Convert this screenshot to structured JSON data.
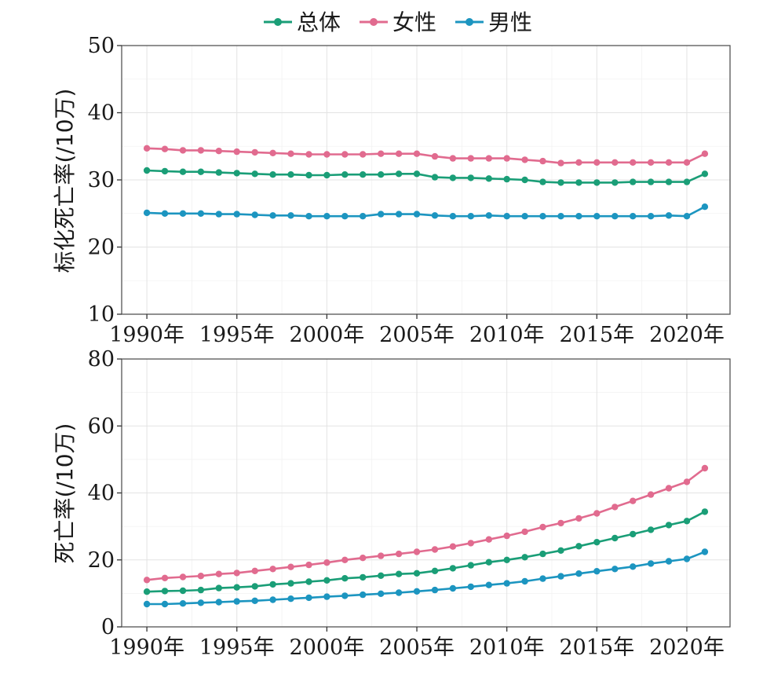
{
  "legend": {
    "items": [
      {
        "label": "总体",
        "color": "#1a9e77"
      },
      {
        "label": "女性",
        "color": "#e16b8f"
      },
      {
        "label": "男性",
        "color": "#1c95c0"
      }
    ]
  },
  "chart_data": [
    {
      "type": "line",
      "ylabel": "标化死亡率(/10万)",
      "ylim": [
        10,
        50
      ],
      "yticks": [
        10,
        20,
        30,
        40,
        50
      ],
      "xlim": [
        1988.6,
        2022.4
      ],
      "xticks": [
        {
          "value": 1990,
          "label": "1990年"
        },
        {
          "value": 1995,
          "label": "1995年"
        },
        {
          "value": 2000,
          "label": "2000年"
        },
        {
          "value": 2005,
          "label": "2005年"
        },
        {
          "value": 2010,
          "label": "2010年"
        },
        {
          "value": 2015,
          "label": "2015年"
        },
        {
          "value": 2020,
          "label": "2020年"
        }
      ],
      "x": [
        1990,
        1991,
        1992,
        1993,
        1994,
        1995,
        1996,
        1997,
        1998,
        1999,
        2000,
        2001,
        2002,
        2003,
        2004,
        2005,
        2006,
        2007,
        2008,
        2009,
        2010,
        2011,
        2012,
        2013,
        2014,
        2015,
        2016,
        2017,
        2018,
        2019,
        2020,
        2021
      ],
      "grid": true,
      "legend_position": "top",
      "series": [
        {
          "name": "总体",
          "color": "#1a9e77",
          "values": [
            31.4,
            31.3,
            31.2,
            31.2,
            31.1,
            31.0,
            30.9,
            30.8,
            30.8,
            30.7,
            30.7,
            30.8,
            30.8,
            30.8,
            30.9,
            30.9,
            30.4,
            30.3,
            30.3,
            30.2,
            30.1,
            30.0,
            29.7,
            29.6,
            29.6,
            29.6,
            29.6,
            29.7,
            29.7,
            29.7,
            29.7,
            30.9
          ]
        },
        {
          "name": "女性",
          "color": "#e16b8f",
          "values": [
            34.7,
            34.6,
            34.4,
            34.4,
            34.3,
            34.2,
            34.1,
            34.0,
            33.9,
            33.8,
            33.8,
            33.8,
            33.8,
            33.9,
            33.9,
            33.9,
            33.5,
            33.2,
            33.2,
            33.2,
            33.2,
            33.0,
            32.8,
            32.5,
            32.6,
            32.6,
            32.6,
            32.6,
            32.6,
            32.6,
            32.6,
            33.9
          ]
        },
        {
          "name": "男性",
          "color": "#1c95c0",
          "values": [
            25.1,
            25.0,
            25.0,
            25.0,
            24.9,
            24.9,
            24.8,
            24.7,
            24.7,
            24.6,
            24.6,
            24.6,
            24.6,
            24.9,
            24.9,
            24.9,
            24.7,
            24.6,
            24.6,
            24.7,
            24.6,
            24.6,
            24.6,
            24.6,
            24.6,
            24.6,
            24.6,
            24.6,
            24.6,
            24.7,
            24.6,
            26.0
          ]
        }
      ]
    },
    {
      "type": "line",
      "ylabel": "死亡率(/10万)",
      "ylim": [
        0,
        80
      ],
      "yticks": [
        0,
        20,
        40,
        60,
        80
      ],
      "xlim": [
        1988.6,
        2022.4
      ],
      "xticks": [
        {
          "value": 1990,
          "label": "1990年"
        },
        {
          "value": 1995,
          "label": "1995年"
        },
        {
          "value": 2000,
          "label": "2000年"
        },
        {
          "value": 2005,
          "label": "2005年"
        },
        {
          "value": 2010,
          "label": "2010年"
        },
        {
          "value": 2015,
          "label": "2015年"
        },
        {
          "value": 2020,
          "label": "2020年"
        }
      ],
      "x": [
        1990,
        1991,
        1992,
        1993,
        1994,
        1995,
        1996,
        1997,
        1998,
        1999,
        2000,
        2001,
        2002,
        2003,
        2004,
        2005,
        2006,
        2007,
        2008,
        2009,
        2010,
        2011,
        2012,
        2013,
        2014,
        2015,
        2016,
        2017,
        2018,
        2019,
        2020,
        2021
      ],
      "grid": true,
      "series": [
        {
          "name": "总体",
          "color": "#1a9e77",
          "values": [
            10.5,
            10.7,
            10.8,
            11.0,
            11.6,
            11.8,
            12.1,
            12.7,
            13.0,
            13.5,
            13.9,
            14.5,
            14.8,
            15.3,
            15.8,
            16.0,
            16.7,
            17.5,
            18.4,
            19.3,
            20.0,
            20.8,
            21.8,
            22.8,
            24.1,
            25.3,
            26.5,
            27.7,
            29.0,
            30.4,
            31.6,
            34.4
          ]
        },
        {
          "name": "女性",
          "color": "#e16b8f",
          "values": [
            14.0,
            14.6,
            14.9,
            15.2,
            15.8,
            16.1,
            16.7,
            17.3,
            17.9,
            18.5,
            19.2,
            20.0,
            20.6,
            21.2,
            21.8,
            22.4,
            23.1,
            24.0,
            25.0,
            26.1,
            27.2,
            28.4,
            29.8,
            31.0,
            32.4,
            33.9,
            35.8,
            37.6,
            39.5,
            41.4,
            43.3,
            47.4
          ]
        },
        {
          "name": "男性",
          "color": "#1c95c0",
          "values": [
            6.8,
            6.8,
            7.0,
            7.2,
            7.4,
            7.6,
            7.8,
            8.1,
            8.4,
            8.7,
            9.0,
            9.3,
            9.6,
            9.9,
            10.2,
            10.6,
            11.0,
            11.5,
            12.0,
            12.5,
            13.0,
            13.6,
            14.4,
            15.1,
            15.9,
            16.6,
            17.3,
            18.0,
            18.9,
            19.6,
            20.3,
            22.4
          ]
        }
      ]
    }
  ]
}
